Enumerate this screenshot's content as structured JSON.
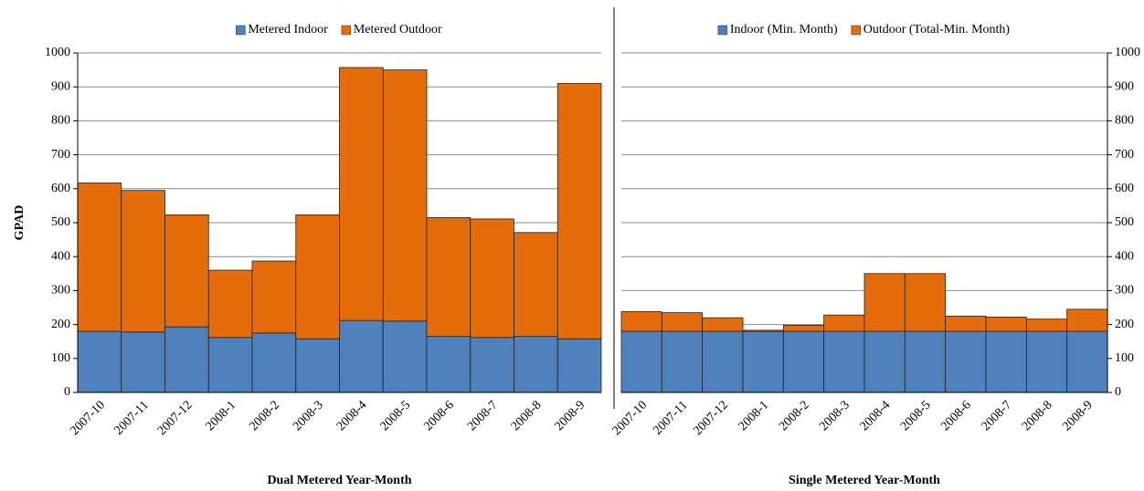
{
  "chart_data": [
    {
      "type": "bar",
      "stacked": true,
      "xlabel": "Dual Metered Year-Month",
      "ylabel": "GPAD",
      "categories": [
        "2007-10",
        "2007-11",
        "2007-12",
        "2008-1",
        "2008-2",
        "2008-3",
        "2008-4",
        "2008-5",
        "2008-6",
        "2008-7",
        "2008-8",
        "2008-9"
      ],
      "series": [
        {
          "name": "Metered Indoor",
          "color": "#4f81bd",
          "values": [
            180,
            178,
            193,
            162,
            175,
            158,
            212,
            210,
            165,
            162,
            165,
            158
          ]
        },
        {
          "name": "Metered Outdoor",
          "color": "#e46c0a",
          "values": [
            437,
            417,
            330,
            198,
            212,
            365,
            745,
            740,
            350,
            349,
            306,
            752
          ]
        }
      ],
      "ylim": [
        0,
        1000
      ],
      "yticks": [
        0,
        100,
        200,
        300,
        400,
        500,
        600,
        700,
        800,
        900,
        1000
      ],
      "grid": true,
      "y_axis_side": "left",
      "legend": "top"
    },
    {
      "type": "bar",
      "stacked": true,
      "xlabel": "Single Metered Year-Month",
      "categories": [
        "2007-10",
        "2007-11",
        "2007-12",
        "2008-1",
        "2008-2",
        "2008-3",
        "2008-4",
        "2008-5",
        "2008-6",
        "2008-7",
        "2008-8",
        "2008-9"
      ],
      "series": [
        {
          "name": "Indoor (Min. Month)",
          "color": "#4f81bd",
          "values": [
            180,
            180,
            180,
            180,
            180,
            180,
            180,
            180,
            180,
            180,
            180,
            180
          ]
        },
        {
          "name": "Outdoor (Total-Min. Month)",
          "color": "#e46c0a",
          "values": [
            58,
            55,
            40,
            3,
            18,
            48,
            170,
            170,
            45,
            42,
            36,
            65
          ]
        }
      ],
      "ylim": [
        0,
        1000
      ],
      "yticks": [
        0,
        100,
        200,
        300,
        400,
        500,
        600,
        700,
        800,
        900,
        1000
      ],
      "grid": true,
      "y_axis_side": "right",
      "legend": "top"
    }
  ]
}
